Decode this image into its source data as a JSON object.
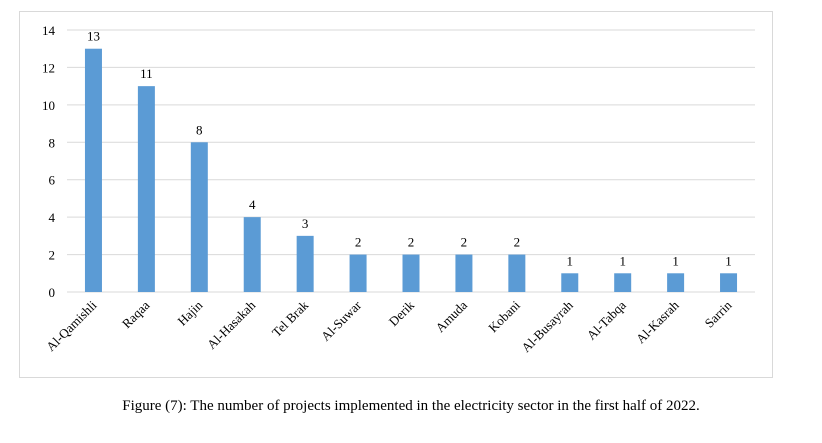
{
  "chart_data": {
    "type": "bar",
    "categories": [
      "Al-Qamishli",
      "Raqaa",
      "Hajin",
      "Al-Hasakah",
      "Tel Brak",
      "Al-Suwar",
      "Derik",
      "Amuda",
      "Kobani",
      "Al-Busayrah",
      "Al-Tabqa",
      "Al-Kasrah",
      "Sarrin"
    ],
    "values": [
      13,
      11,
      8,
      4,
      3,
      2,
      2,
      2,
      2,
      1,
      1,
      1,
      1
    ],
    "ylim": [
      0,
      14
    ],
    "yticks": [
      0,
      2,
      4,
      6,
      8,
      10,
      12,
      14
    ],
    "grid": true,
    "data_labels": true,
    "bar_color": "#5b9bd5",
    "grid_color": "#d9d9d9"
  },
  "caption": "Figure (7): The number of projects implemented in the electricity sector in the first half of 2022."
}
